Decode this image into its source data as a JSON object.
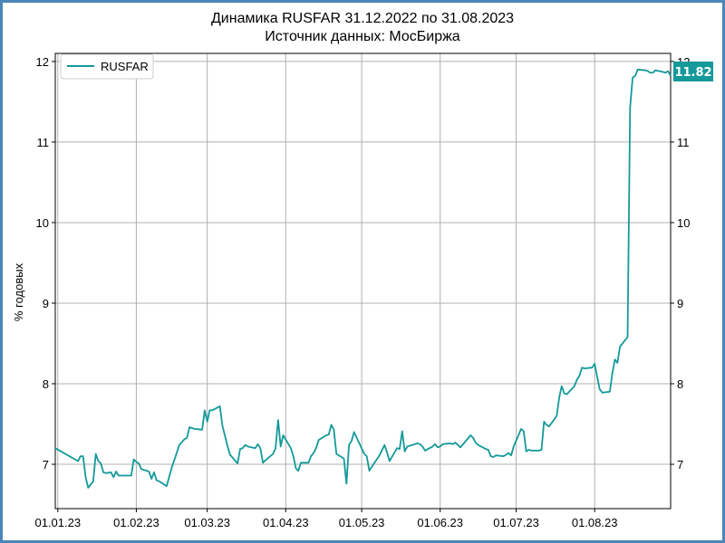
{
  "chart_data": {
    "type": "line",
    "title": "Динамика RUSFAR 31.12.2022 по 31.08.2023",
    "subtitle": "Источник данных: МосБиржа",
    "ylabel": "% годовых",
    "xlabel": "",
    "ylim": [
      6.45,
      12.1
    ],
    "xlim": [
      "2022-12-31",
      "2023-08-31"
    ],
    "grid": true,
    "legend_position": "top-left",
    "y_ticks": [
      7,
      8,
      9,
      10,
      11,
      12
    ],
    "x_ticks": [
      "2023-01-01",
      "2023-02-01",
      "2023-03-01",
      "2023-04-01",
      "2023-05-01",
      "2023-06-01",
      "2023-07-01",
      "2023-08-01"
    ],
    "x_tick_labels": [
      "01.01.23",
      "01.02.23",
      "01.03.23",
      "01.04.23",
      "01.05.23",
      "01.06.23",
      "01.07.23",
      "01.08.23"
    ],
    "last_value_label": "11.82",
    "series": [
      {
        "name": "RUSFAR",
        "color": "#14999a",
        "x": [
          "2022-12-31",
          "2023-01-09",
          "2023-01-10",
          "2023-01-11",
          "2023-01-12",
          "2023-01-13",
          "2023-01-15",
          "2023-01-16",
          "2023-01-17",
          "2023-01-18",
          "2023-01-19",
          "2023-01-20",
          "2023-01-22",
          "2023-01-23",
          "2023-01-24",
          "2023-01-25",
          "2023-01-27",
          "2023-01-30",
          "2023-01-31",
          "2023-02-01",
          "2023-02-02",
          "2023-02-03",
          "2023-02-06",
          "2023-02-07",
          "2023-02-08",
          "2023-02-09",
          "2023-02-10",
          "2023-02-13",
          "2023-02-15",
          "2023-02-16",
          "2023-02-18",
          "2023-02-20",
          "2023-02-21",
          "2023-02-22",
          "2023-02-24",
          "2023-02-27",
          "2023-02-28",
          "2023-03-01",
          "2023-03-02",
          "2023-03-03",
          "2023-03-06",
          "2023-03-07",
          "2023-03-09",
          "2023-03-10",
          "2023-03-13",
          "2023-03-14",
          "2023-03-15",
          "2023-03-16",
          "2023-03-17",
          "2023-03-20",
          "2023-03-21",
          "2023-03-22",
          "2023-03-23",
          "2023-03-24",
          "2023-03-27",
          "2023-03-28",
          "2023-03-29",
          "2023-03-30",
          "2023-03-31",
          "2023-04-03",
          "2023-04-04",
          "2023-04-05",
          "2023-04-06",
          "2023-04-07",
          "2023-04-10",
          "2023-04-11",
          "2023-04-12",
          "2023-04-13",
          "2023-04-14",
          "2023-04-17",
          "2023-04-18",
          "2023-04-19",
          "2023-04-20",
          "2023-04-21",
          "2023-04-24",
          "2023-04-25",
          "2023-04-26",
          "2023-04-27",
          "2023-04-28",
          "2023-05-02",
          "2023-05-03",
          "2023-05-04",
          "2023-05-05",
          "2023-05-08",
          "2023-05-10",
          "2023-05-11",
          "2023-05-12",
          "2023-05-15",
          "2023-05-16",
          "2023-05-17",
          "2023-05-18",
          "2023-05-19",
          "2023-05-22",
          "2023-05-23",
          "2023-05-24",
          "2023-05-25",
          "2023-05-26",
          "2023-05-29",
          "2023-05-30",
          "2023-05-31",
          "2023-06-01",
          "2023-06-02",
          "2023-06-05",
          "2023-06-06",
          "2023-06-07",
          "2023-06-08",
          "2023-06-09",
          "2023-06-13",
          "2023-06-14",
          "2023-06-15",
          "2023-06-16",
          "2023-06-19",
          "2023-06-20",
          "2023-06-21",
          "2023-06-22",
          "2023-06-23",
          "2023-06-26",
          "2023-06-27",
          "2023-06-28",
          "2023-06-29",
          "2023-06-30",
          "2023-07-03",
          "2023-07-04",
          "2023-07-05",
          "2023-07-06",
          "2023-07-07",
          "2023-07-10",
          "2023-07-11",
          "2023-07-12",
          "2023-07-13",
          "2023-07-14",
          "2023-07-17",
          "2023-07-18",
          "2023-07-19",
          "2023-07-20",
          "2023-07-21",
          "2023-07-24",
          "2023-07-25",
          "2023-07-26",
          "2023-07-27",
          "2023-07-28",
          "2023-07-31",
          "2023-08-01",
          "2023-08-02",
          "2023-08-03",
          "2023-08-04",
          "2023-08-07",
          "2023-08-08",
          "2023-08-09",
          "2023-08-10",
          "2023-08-11",
          "2023-08-14",
          "2023-08-15",
          "2023-08-16",
          "2023-08-17",
          "2023-08-18",
          "2023-08-21",
          "2023-08-22",
          "2023-08-23",
          "2023-08-24",
          "2023-08-25",
          "2023-08-28",
          "2023-08-29",
          "2023-08-30",
          "2023-08-31"
        ],
        "y": [
          7.2,
          7.04,
          7.1,
          7.1,
          6.84,
          6.71,
          6.79,
          7.13,
          7.04,
          7.01,
          6.9,
          6.89,
          6.9,
          6.84,
          6.91,
          6.86,
          6.86,
          6.86,
          7.06,
          7.03,
          7.01,
          6.94,
          6.91,
          6.82,
          6.9,
          6.8,
          6.79,
          6.73,
          6.96,
          7.05,
          7.24,
          7.31,
          7.33,
          7.46,
          7.44,
          7.43,
          7.67,
          7.53,
          7.67,
          7.67,
          7.72,
          7.48,
          7.23,
          7.12,
          7.01,
          7.19,
          7.2,
          7.24,
          7.22,
          7.2,
          7.25,
          7.2,
          7.02,
          7.05,
          7.13,
          7.2,
          7.55,
          7.22,
          7.36,
          7.2,
          7.1,
          6.95,
          6.92,
          7.02,
          7.02,
          7.1,
          7.14,
          7.2,
          7.3,
          7.36,
          7.37,
          7.49,
          7.43,
          7.13,
          7.07,
          6.76,
          7.24,
          7.29,
          7.4,
          7.13,
          7.1,
          6.92,
          6.97,
          7.11,
          7.24,
          7.15,
          7.04,
          7.2,
          7.19,
          7.41,
          7.16,
          7.22,
          7.25,
          7.26,
          7.25,
          7.22,
          7.17,
          7.22,
          7.25,
          7.21,
          7.22,
          7.25,
          7.26,
          7.25,
          7.27,
          7.24,
          7.21,
          7.36,
          7.33,
          7.27,
          7.24,
          7.19,
          7.18,
          7.1,
          7.09,
          7.11,
          7.1,
          7.12,
          7.14,
          7.11,
          7.22,
          7.44,
          7.41,
          7.16,
          7.18,
          7.17,
          7.17,
          7.18,
          7.53,
          7.49,
          7.47,
          7.6,
          7.83,
          7.97,
          7.88,
          7.87,
          7.97,
          8.05,
          8.1,
          8.2,
          8.19,
          8.2,
          8.25,
          8.08,
          7.93,
          7.89,
          7.9,
          8.13,
          8.3,
          8.26,
          8.46,
          8.58,
          11.43,
          11.8,
          11.82,
          11.9,
          11.89,
          11.88,
          11.86,
          11.86,
          11.89,
          11.87,
          11.86,
          11.88,
          11.82
        ]
      }
    ]
  }
}
